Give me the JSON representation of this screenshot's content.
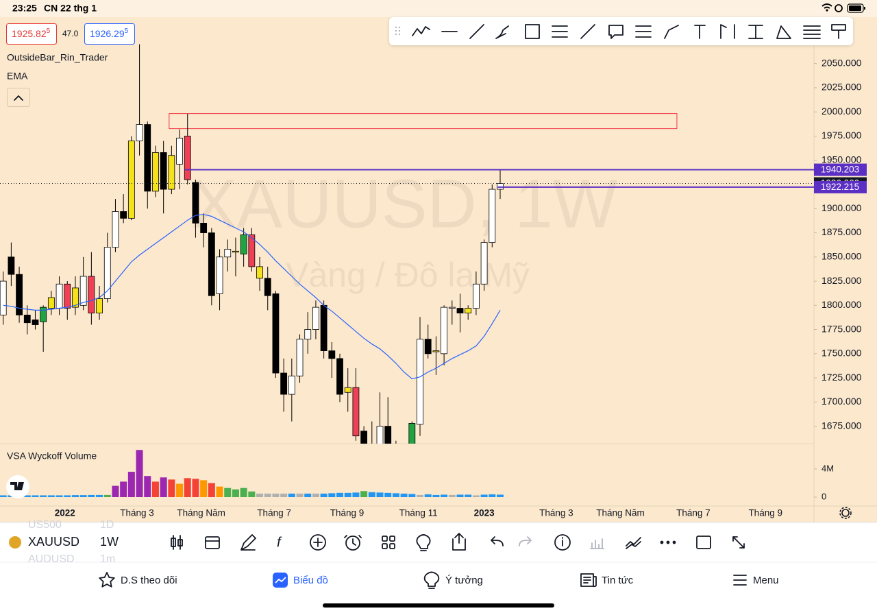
{
  "status_bar": {
    "time": "23:25",
    "date": "CN 22 thg 1"
  },
  "header": {
    "bid": {
      "price": "1925.82",
      "pip": "5"
    },
    "spread": "47.0",
    "ask": {
      "price": "1926.29",
      "pip": "5"
    }
  },
  "indicators": [
    "OutsideBar_Rin_Trader"
  ],
  "chart_data": [
    {
      "type": "candlestick",
      "title": "XAUUSD, 1W",
      "subtitle": "Vàng / Đô la Mỹ",
      "open": [
        1790,
        1850,
        1832,
        1790,
        1785,
        1783,
        1797,
        1797,
        1822,
        1798,
        1800,
        1830,
        1792,
        1807,
        1860,
        1897,
        1890,
        1970,
        1987,
        1918,
        1958,
        1920,
        1946,
        1975,
        1927,
        1885,
        1875,
        1812,
        1850,
        1855,
        1853,
        1873,
        1840,
        1828,
        1812,
        1730,
        1708,
        1727,
        1765,
        1775,
        1800,
        1753,
        1745,
        1710,
        1715,
        1670,
        1647,
        1645,
        1675,
        1648,
        1645,
        1655,
        1677,
        1765,
        1752,
        1750,
        1797,
        1797,
        1792,
        1797,
        1822,
        1865,
        1920
      ],
      "high": [
        1835,
        1865,
        1840,
        1800,
        1795,
        1800,
        1815,
        1830,
        1825,
        1830,
        1850,
        1855,
        1820,
        1875,
        1910,
        1915,
        1975,
        2070,
        1990,
        1965,
        1970,
        1965,
        1982,
        1998,
        1930,
        1895,
        1880,
        1858,
        1868,
        1870,
        1880,
        1880,
        1850,
        1840,
        1815,
        1745,
        1745,
        1770,
        1793,
        1805,
        1805,
        1762,
        1750,
        1735,
        1735,
        1675,
        1680,
        1710,
        1705,
        1660,
        1655,
        1680,
        1788,
        1780,
        1768,
        1800,
        1805,
        1812,
        1800,
        1835,
        1868,
        1925,
        1940
      ],
      "low": [
        1780,
        1820,
        1782,
        1770,
        1775,
        1752,
        1790,
        1790,
        1785,
        1790,
        1795,
        1780,
        1785,
        1803,
        1855,
        1885,
        1888,
        1955,
        1900,
        1912,
        1895,
        1915,
        1920,
        1925,
        1870,
        1860,
        1800,
        1795,
        1835,
        1830,
        1840,
        1835,
        1815,
        1795,
        1725,
        1690,
        1680,
        1720,
        1750,
        1765,
        1745,
        1725,
        1700,
        1690,
        1660,
        1640,
        1640,
        1630,
        1640,
        1625,
        1620,
        1650,
        1665,
        1745,
        1728,
        1738,
        1780,
        1772,
        1785,
        1790,
        1815,
        1860,
        1910
      ],
      "close": [
        1825,
        1832,
        1790,
        1782,
        1780,
        1798,
        1808,
        1822,
        1797,
        1818,
        1830,
        1792,
        1807,
        1860,
        1897,
        1890,
        1970,
        1987,
        1918,
        1958,
        1920,
        1955,
        1973,
        1930,
        1885,
        1875,
        1810,
        1850,
        1858,
        1856,
        1873,
        1840,
        1828,
        1810,
        1730,
        1708,
        1727,
        1765,
        1775,
        1798,
        1753,
        1745,
        1708,
        1715,
        1665,
        1645,
        1650,
        1675,
        1645,
        1645,
        1640,
        1678,
        1765,
        1750,
        1753,
        1798,
        1798,
        1792,
        1797,
        1822,
        1865,
        1920,
        1926
      ],
      "colors": [
        "#ffffff",
        "#000000",
        "#000000",
        "#000000",
        "#000000",
        "#21a341",
        "#f5e21b",
        "#ffffff",
        "#ef4056",
        "#f5e21b",
        "#ffffff",
        "#ef4056",
        "#f5e21b",
        "#ffffff",
        "#ffffff",
        "#000000",
        "#f5e21b",
        "#ffffff",
        "#000000",
        "#f5e21b",
        "#000000",
        "#f5e21b",
        "#ffffff",
        "#ef4056",
        "#000000",
        "#000000",
        "#000000",
        "#ffffff",
        "#ffffff",
        "#f5e21b",
        "#21a341",
        "#ef4056",
        "#f5e21b",
        "#000000",
        "#000000",
        "#000000",
        "#ffffff",
        "#ffffff",
        "#ffffff",
        "#ffffff",
        "#000000",
        "#000000",
        "#000000",
        "#f5e21b",
        "#ef4056",
        "#000000",
        "#ffffff",
        "#ffffff",
        "#000000",
        "#000000",
        "#000000",
        "#21a341",
        "#ffffff",
        "#000000",
        "#f5e21b",
        "#ffffff",
        "#ffffff",
        "#000000",
        "#f5e21b",
        "#ffffff",
        "#ffffff",
        "#ffffff",
        "#ffffff"
      ],
      "ema": {
        "name": "EMA",
        "color": "#2962ff",
        "values": [
          1800,
          1799,
          1797,
          1796,
          1795,
          1795,
          1796,
          1797,
          1798,
          1800,
          1803,
          1805,
          1808,
          1815,
          1825,
          1835,
          1845,
          1852,
          1858,
          1864,
          1870,
          1876,
          1882,
          1888,
          1893,
          1894,
          1892,
          1888,
          1884,
          1880,
          1876,
          1870,
          1863,
          1855,
          1846,
          1838,
          1830,
          1822,
          1815,
          1808,
          1800,
          1794,
          1787,
          1780,
          1773,
          1766,
          1760,
          1755,
          1748,
          1740,
          1731,
          1724,
          1726,
          1731,
          1735,
          1740,
          1745,
          1749,
          1753,
          1758,
          1768,
          1781,
          1795
        ]
      },
      "zone": {
        "x": [
          20.7,
          84.05
        ],
        "y": [
          1982.7,
          1998.3
        ],
        "color": "#f23645"
      },
      "price_lines": [
        {
          "value": 1940.203,
          "label": "1940.203",
          "start": 22.7,
          "color": "#5b2fc4",
          "style": "solid"
        },
        {
          "value": 1926.06,
          "label": "1926.060",
          "start": -0.4,
          "color": "#131722",
          "style": "dotted"
        },
        {
          "value": 1922.215,
          "label": "1922.215",
          "start": 61.7,
          "color": "#5b2fc4",
          "style": "solid"
        }
      ],
      "xlim": [
        -0.4,
        101.15
      ],
      "ylim": [
        1657,
        2098
      ],
      "xticks": [
        {
          "value": 7.7,
          "label": "2022"
        },
        {
          "value": 16.7,
          "label": "Tháng 3"
        },
        {
          "value": 24.7,
          "label": "Tháng Năm"
        },
        {
          "value": 33.8,
          "label": "Tháng 7"
        },
        {
          "value": 42.9,
          "label": "Tháng 9"
        },
        {
          "value": 51.8,
          "label": "Tháng 11"
        },
        {
          "value": 60,
          "label": "2023"
        },
        {
          "value": 69,
          "label": "Tháng 3"
        },
        {
          "value": 77,
          "label": "Tháng Năm"
        },
        {
          "value": 86.1,
          "label": "Tháng 7"
        },
        {
          "value": 95.1,
          "label": "Tháng 9"
        }
      ],
      "yticks": [
        {
          "value": 1675,
          "label": "1675.000"
        },
        {
          "value": 1700,
          "label": "1700.000"
        },
        {
          "value": 1725,
          "label": "1725.000"
        },
        {
          "value": 1750,
          "label": "1750.000"
        },
        {
          "value": 1775,
          "label": "1775.000"
        },
        {
          "value": 1800,
          "label": "1800.000"
        },
        {
          "value": 1825,
          "label": "1825.000"
        },
        {
          "value": 1850,
          "label": "1850.000"
        },
        {
          "value": 1875,
          "label": "1875.000"
        },
        {
          "value": 1900,
          "label": "1900.000"
        },
        {
          "value": 1950,
          "label": "1950.000"
        },
        {
          "value": 1975,
          "label": "1975.000"
        },
        {
          "value": 2000,
          "label": "2000.000"
        },
        {
          "value": 2025,
          "label": "2025.000"
        },
        {
          "value": 2050,
          "label": "2050.000"
        }
      ]
    },
    {
      "type": "bar",
      "title": "VSA Wyckoff Volume",
      "values": [
        250000,
        250000,
        250000,
        250000,
        250000,
        250000,
        250000,
        250000,
        250000,
        280000,
        280000,
        300000,
        300000,
        300000,
        1600000,
        2200000,
        3600000,
        6700000,
        3000000,
        2200000,
        2800000,
        2500000,
        1900000,
        2700000,
        2600000,
        2400000,
        2000000,
        1500000,
        1300000,
        1100000,
        1300000,
        800000,
        500000,
        500000,
        500000,
        500000,
        500000,
        500000,
        500000,
        500000,
        500000,
        550000,
        600000,
        600000,
        650000,
        850000,
        700000,
        650000,
        600000,
        550000,
        500000,
        450000,
        300000,
        400000,
        300000,
        350000,
        300000,
        350000,
        350000,
        250000,
        350000,
        400000,
        350000
      ],
      "colors": [
        "#2196f3",
        "#2196f3",
        "#2196f3",
        "#2196f3",
        "#2196f3",
        "#2196f3",
        "#2196f3",
        "#2196f3",
        "#2196f3",
        "#2196f3",
        "#2196f3",
        "#2196f3",
        "#2196f3",
        "#4caf50",
        "#9c27b0",
        "#9c27b0",
        "#9c27b0",
        "#9c27b0",
        "#9c27b0",
        "#f44336",
        "#9c27b0",
        "#f44336",
        "#ff9800",
        "#f44336",
        "#f44336",
        "#ff9800",
        "#f44336",
        "#ff9800",
        "#4caf50",
        "#4caf50",
        "#4caf50",
        "#4caf50",
        "#b0b0b0",
        "#b0b0b0",
        "#b0b0b0",
        "#b0b0b0",
        "#2196f3",
        "#b0b0b0",
        "#2196f3",
        "#b0b0b0",
        "#2196f3",
        "#2196f3",
        "#2196f3",
        "#2196f3",
        "#2196f3",
        "#4caf50",
        "#2196f3",
        "#2196f3",
        "#2196f3",
        "#2196f3",
        "#2196f3",
        "#2196f3",
        "#b0b0b0",
        "#2196f3",
        "#2196f3",
        "#2196f3",
        "#b0b0b0",
        "#2196f3",
        "#2196f3",
        "#b0b0b0",
        "#2196f3",
        "#2196f3",
        "#2196f3"
      ],
      "ylim": [
        0,
        7600000
      ],
      "yticks": [
        0,
        {
          "value": 4000000,
          "label": "4M"
        }
      ]
    }
  ],
  "toolbar": {
    "symbol": "XAUUSD",
    "interval": "1W",
    "ghost_above": [
      "US500",
      "1D"
    ],
    "ghost_below": [
      "AUDUSD",
      "1m"
    ]
  },
  "nav": [
    "D.S theo dõi",
    "Biểu đồ",
    "Ý tưởng",
    "Tin tức",
    "Menu"
  ]
}
